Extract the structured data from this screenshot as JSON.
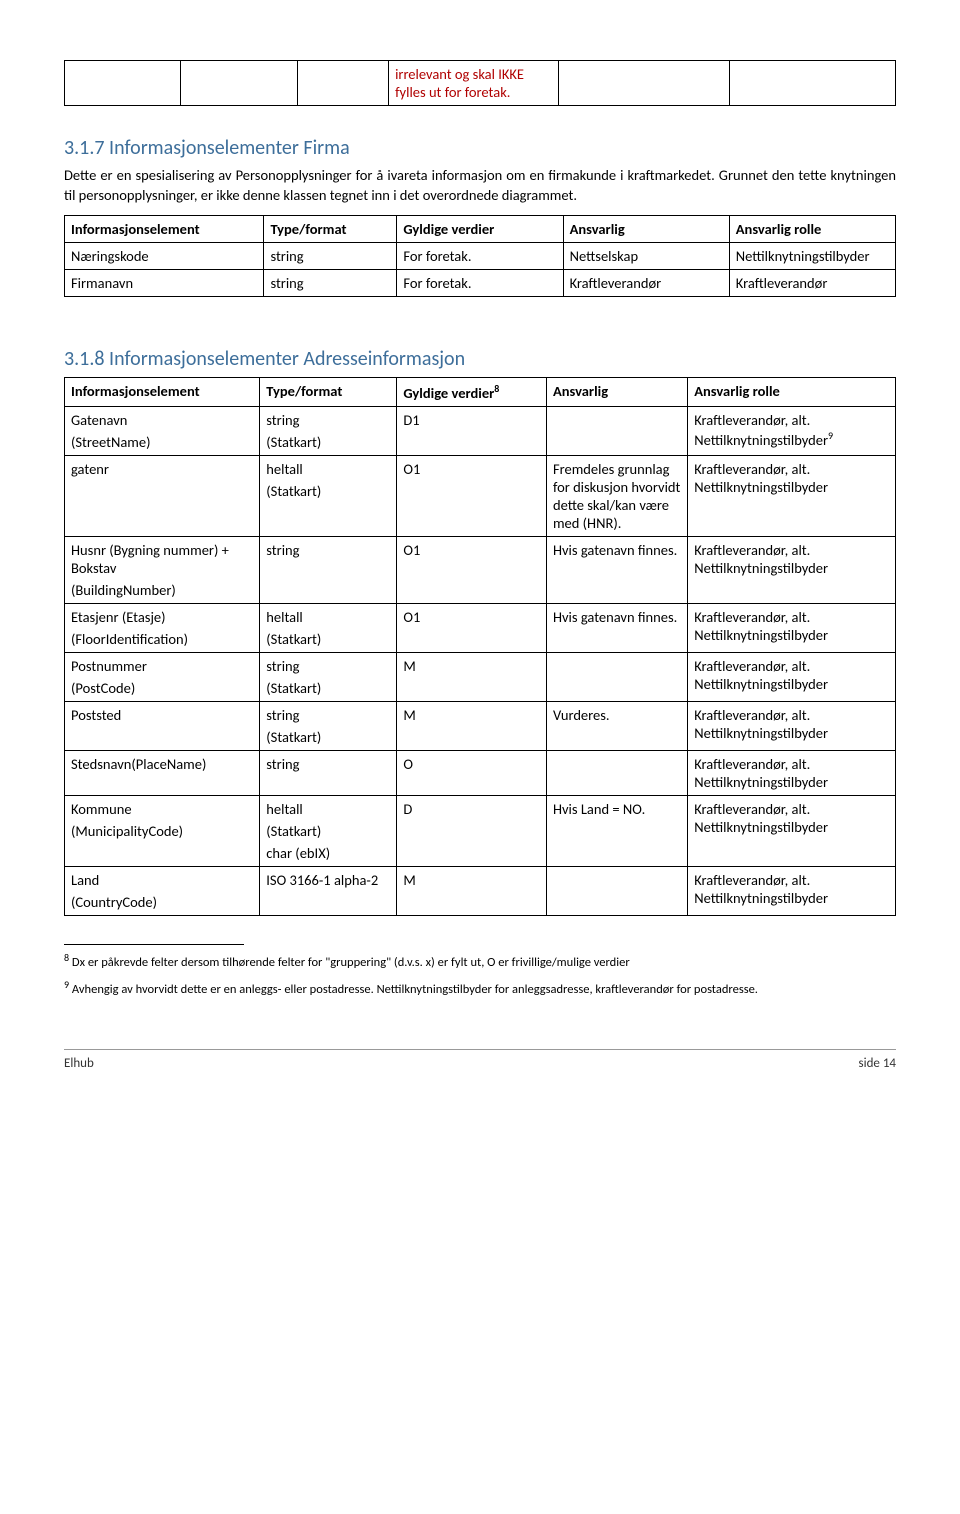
{
  "fragmentNote": "irrelevant og skal IKKE fylles ut for foretak.",
  "section1": {
    "heading": "3.1.7  Informasjonselementer Firma",
    "para": "Dette er en spesialisering av Personopplysninger for å ivareta informasjon om en firmakunde i kraftmarkedet. Grunnet den tette knytningen til personopplysninger, er ikke denne klassen tegnet inn i det overordnede diagrammet.",
    "headers": [
      "Informasjonselement",
      "Type/format",
      "Gyldige verdier",
      "Ansvarlig",
      "Ansvarlig rolle"
    ],
    "rows": [
      [
        "Næringskode",
        "string",
        "For foretak.",
        "Nettselskap",
        "Nettilknytningstilbyder"
      ],
      [
        "Firmanavn",
        "string",
        "For foretak.",
        "Kraftleverandør",
        "Kraftleverandør"
      ]
    ]
  },
  "section2": {
    "heading": "3.1.8  Informasjonselementer Adresseinformasjon",
    "headers": [
      "Informasjonselement",
      "Type/format",
      "Gyldige verdier",
      "Ansvarlig",
      "Ansvarlig rolle"
    ],
    "header_sup": "8",
    "rows": [
      {
        "c": [
          "Gatenavn\n(StreetName)",
          "string\n(Statkart)",
          "D1",
          "",
          "Kraftleverandør, alt. Nettilknytningstilbyder"
        ],
        "sup5": "9"
      },
      {
        "c": [
          "gatenr",
          "heltall\n(Statkart)",
          "O1",
          "Fremdeles grunnlag for diskusjon hvorvidt dette skal/kan være med (HNR).",
          "Kraftleverandør, alt. Nettilknytningstilbyder"
        ]
      },
      {
        "c": [
          "Husnr (Bygning nummer) + Bokstav\n(BuildingNumber)",
          "string",
          "O1",
          "Hvis gatenavn finnes.",
          "Kraftleverandør, alt. Nettilknytningstilbyder"
        ]
      },
      {
        "c": [
          "Etasjenr (Etasje)\n(FloorIdentification)",
          "heltall\n(Statkart)",
          "O1",
          "Hvis gatenavn finnes.",
          "Kraftleverandør, alt. Nettilknytningstilbyder"
        ]
      },
      {
        "c": [
          "Postnummer\n(PostCode)",
          "string\n(Statkart)",
          "M",
          "",
          "Kraftleverandør, alt. Nettilknytningstilbyder"
        ]
      },
      {
        "c": [
          "Poststed",
          "string\n(Statkart)",
          "M",
          "Vurderes.",
          "Kraftleverandør, alt. Nettilknytningstilbyder"
        ]
      },
      {
        "c": [
          "Stedsnavn(PlaceName)",
          "string",
          "O",
          "",
          "Kraftleverandør, alt. Nettilknytningstilbyder"
        ]
      },
      {
        "c": [
          "Kommune\n(MunicipalityCode)",
          "heltall\n(Statkart)\nchar (ebIX)",
          "D",
          "Hvis Land = NO.",
          "Kraftleverandør, alt. Nettilknytningstilbyder"
        ]
      },
      {
        "c": [
          "Land\n(CountryCode)",
          "ISO 3166-1 alpha-2",
          "M",
          "",
          "Kraftleverandør, alt. Nettilknytningstilbyder"
        ]
      }
    ]
  },
  "footnotes": {
    "fn8": "Dx er påkrevde felter dersom tilhørende felter for \"gruppering\" (d.v.s. x) er fylt ut, O er frivillige/mulige verdier",
    "fn8_num": "8",
    "fn9": "Avhengig av hvorvidt dette er en anleggs- eller postadresse. Nettilknytningstilbyder for anleggsadresse, kraftleverandør for postadresse.",
    "fn9_num": "9"
  },
  "footer": {
    "left": "Elhub",
    "right": "side 14"
  }
}
